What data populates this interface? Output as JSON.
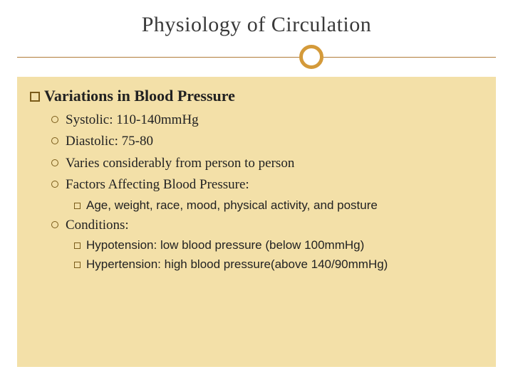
{
  "colors": {
    "background": "#ffffff",
    "content_bg": "#f3e0a8",
    "accent_line": "#b07d3a",
    "accent_circle": "#d49a3a",
    "bullet_border": "#7a5c1a",
    "text": "#222222",
    "title_text": "#3a3a3a"
  },
  "typography": {
    "title_fontsize": 30,
    "lvl1_fontsize": 22,
    "lvl2_fontsize": 19,
    "lvl3_fontsize": 17,
    "lvl3_family": "sans-serif"
  },
  "title": "Physiology of Circulation",
  "lvl1": {
    "text": "Variations in Blood Pressure"
  },
  "lvl2": {
    "a": "Systolic: 110-140mmHg",
    "b": "Diastolic: 75-80",
    "c": "Varies considerably from person to person",
    "d": "Factors Affecting Blood Pressure:",
    "e": "Conditions:"
  },
  "lvl3": {
    "a": "Age, weight, race, mood, physical activity, and posture",
    "b": "Hypotension: low blood pressure (below 100mmHg)",
    "c": "Hypertension: high blood pressure(above 140/90mmHg)"
  }
}
